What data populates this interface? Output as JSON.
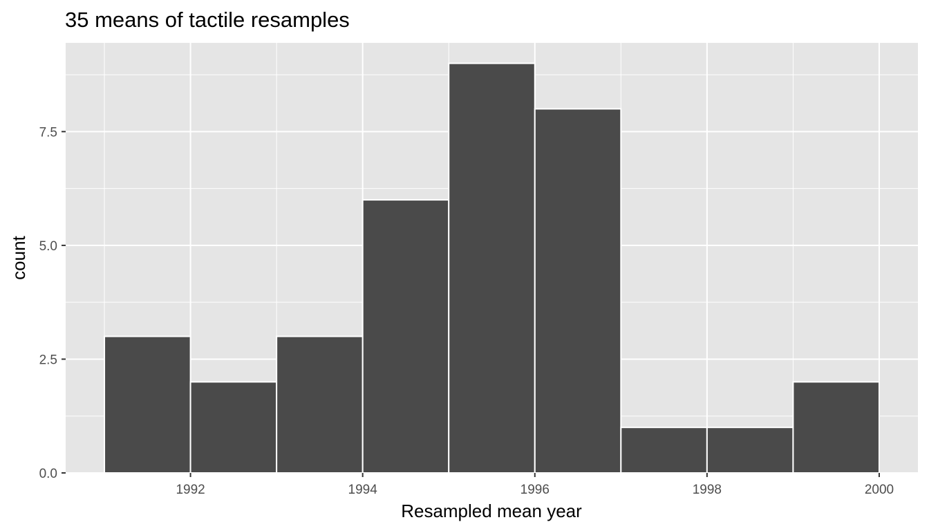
{
  "chart_data": {
    "type": "bar",
    "title": "35 means of tactile resamples",
    "xlabel": "Resampled mean year",
    "ylabel": "count",
    "xlim": [
      1990.55,
      2000.45
    ],
    "ylim": [
      0,
      9.45
    ],
    "x_ticks": [
      1992,
      1994,
      1996,
      1998,
      2000
    ],
    "x_tick_labels": [
      "1992",
      "1994",
      "1996",
      "1998",
      "2000"
    ],
    "y_ticks": [
      0,
      2.5,
      5,
      7.5
    ],
    "y_tick_labels": [
      "0.0",
      "2.5",
      "5.0",
      "7.5"
    ],
    "bin_width": 1,
    "bins": [
      {
        "x0": 1991,
        "x1": 1992,
        "count": 3
      },
      {
        "x0": 1992,
        "x1": 1993,
        "count": 2
      },
      {
        "x0": 1993,
        "x1": 1994,
        "count": 3
      },
      {
        "x0": 1994,
        "x1": 1995,
        "count": 6
      },
      {
        "x0": 1995,
        "x1": 1996,
        "count": 9
      },
      {
        "x0": 1996,
        "x1": 1997,
        "count": 8
      },
      {
        "x0": 1997,
        "x1": 1998,
        "count": 1
      },
      {
        "x0": 1998,
        "x1": 1999,
        "count": 1
      },
      {
        "x0": 1999,
        "x1": 2000,
        "count": 2
      }
    ],
    "grid": true,
    "legend": "none",
    "colors": {
      "panel_background": "#e5e5e5",
      "grid_major": "#ffffff",
      "bar_fill": "#4a4a4a",
      "bar_outline": "#ffffff",
      "tick_mark": "#333333"
    }
  }
}
